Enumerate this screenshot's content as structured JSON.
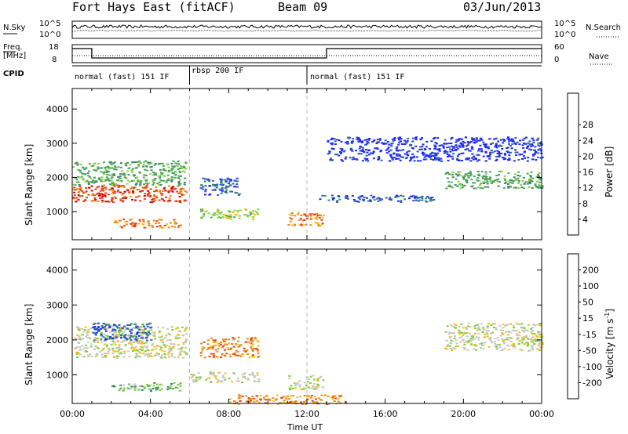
{
  "header": {
    "site": "Fort Hays East (fitACF)",
    "beam": "Beam 09",
    "date": "03/Jun/2013"
  },
  "status_panels": {
    "nsky_label": "N.Sky",
    "nsearch_label": "N.Search",
    "nsky_ticks": [
      "10^5",
      "10^0"
    ],
    "nsearch_ticks": [
      "10^5",
      "10^0"
    ],
    "freq_label": "Freq.",
    "freq_unit": "[MHz]",
    "freq_ticks": [
      "18",
      "8"
    ],
    "nave_label": "Nave",
    "nave_ticks": [
      "60",
      "0"
    ],
    "cpid_label": "CPID",
    "cpid_segments": [
      {
        "label": "normal (fast) 151 IF",
        "start_h": 0,
        "end_h": 6
      },
      {
        "label": "rbsp 200 IF",
        "start_h": 6,
        "end_h": 12
      },
      {
        "label": "normal (fast) 151 IF",
        "start_h": 12,
        "end_h": 24
      }
    ]
  },
  "chart_data": [
    {
      "type": "heatmap",
      "title": "",
      "ylabel": "Slant Range [km]",
      "xlabel": "",
      "xlim": [
        0,
        24
      ],
      "ylim": [
        180,
        4600
      ],
      "y_ticks": [
        1000,
        2000,
        3000,
        4000
      ],
      "colorbar": {
        "label": "Power [dB]",
        "ticks": [
          "4",
          "8",
          "12",
          "16",
          "20",
          "24",
          "28"
        ],
        "colors": [
          "#1e28ff",
          "#2f5fb0",
          "#3d8b6a",
          "#4ea85a",
          "#8ed04a",
          "#f0c020",
          "#f08a1a",
          "#e8401c",
          "#d80000"
        ]
      },
      "regions": [
        {
          "t0": 0.0,
          "t1": 5.8,
          "r0": 1300,
          "r1": 1800,
          "level": 7
        },
        {
          "t0": 0.0,
          "t1": 5.8,
          "r0": 1800,
          "r1": 2500,
          "level": 3
        },
        {
          "t0": 2.0,
          "t1": 5.5,
          "r0": 550,
          "r1": 800,
          "level": 6
        },
        {
          "t0": 6.5,
          "t1": 9.5,
          "r0": 800,
          "r1": 1100,
          "level": 4
        },
        {
          "t0": 6.5,
          "t1": 8.5,
          "r0": 1500,
          "r1": 2000,
          "level": 1
        },
        {
          "t0": 11.0,
          "t1": 12.8,
          "r0": 600,
          "r1": 1000,
          "level": 6
        },
        {
          "t0": 12.5,
          "t1": 18.5,
          "r0": 1300,
          "r1": 1500,
          "level": 1
        },
        {
          "t0": 19.0,
          "t1": 24.0,
          "r0": 1700,
          "r1": 2200,
          "level": 3
        },
        {
          "t0": 13.0,
          "t1": 24.0,
          "r0": 2500,
          "r1": 3200,
          "level": 0
        }
      ]
    },
    {
      "type": "heatmap",
      "title": "",
      "ylabel": "Slant Range [km]",
      "xlabel": "Time UT",
      "xlim": [
        0,
        24
      ],
      "ylim": [
        180,
        4600
      ],
      "y_ticks": [
        1000,
        2000,
        3000,
        4000
      ],
      "x_tick_labels": [
        "00:00",
        "04:00",
        "08:00",
        "12:00",
        "16:00",
        "20:00",
        "00:00"
      ],
      "x_tick_values": [
        0,
        4,
        8,
        12,
        16,
        20,
        24
      ],
      "colorbar": {
        "label": "Velocity [m s",
        "label_sup": "-1",
        "label_end": "]",
        "ticks": [
          "200",
          "100",
          "50",
          "15",
          "-15",
          "-50",
          "-100",
          "-200"
        ],
        "colors": [
          "#1e28ff",
          "#2f5fb0",
          "#3d8b6a",
          "#7ad046",
          "#c8c8c0",
          "#f0c020",
          "#f08a1a",
          "#e8401c",
          "#d80000"
        ]
      },
      "regions": [
        {
          "t0": 0.0,
          "t1": 5.8,
          "r0": 1500,
          "r1": 2400,
          "level": 4
        },
        {
          "t0": 1.0,
          "t1": 4.0,
          "r0": 2000,
          "r1": 2500,
          "level": 1
        },
        {
          "t0": 2.0,
          "t1": 5.5,
          "r0": 550,
          "r1": 800,
          "level": 3
        },
        {
          "t0": 6.0,
          "t1": 9.5,
          "r0": 800,
          "r1": 1100,
          "level": 4
        },
        {
          "t0": 6.5,
          "t1": 9.5,
          "r0": 1500,
          "r1": 2100,
          "level": 6
        },
        {
          "t0": 11.0,
          "t1": 12.8,
          "r0": 600,
          "r1": 1000,
          "level": 4
        },
        {
          "t0": 8.0,
          "t1": 14.0,
          "r0": 180,
          "r1": 450,
          "level": 6
        },
        {
          "t0": 19.0,
          "t1": 24.0,
          "r0": 1700,
          "r1": 2500,
          "level": 4
        }
      ]
    }
  ]
}
